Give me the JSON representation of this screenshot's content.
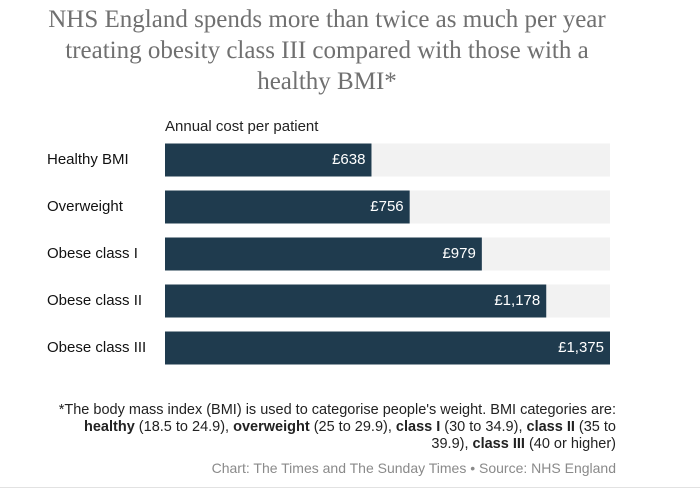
{
  "chart_data": {
    "type": "hbar",
    "title": "NHS England spends more than twice as much per year treating obesity class III compared with those with a healthy BMI*",
    "subtitle": "Annual cost per patient",
    "categories": [
      "Healthy BMI",
      "Overweight",
      "Obese class I",
      "Obese class II",
      "Obese class III"
    ],
    "values": [
      638,
      756,
      979,
      1178,
      1375
    ],
    "value_labels": [
      "£638",
      "£756",
      "£979",
      "£1,178",
      "£1,375"
    ],
    "color": "#1f3b4e",
    "track_color": "#f2f2f2",
    "xlim": [
      0,
      1375
    ],
    "footnote": [
      {
        "text": "*The body mass index (BMI) is used to categorise people's weight. BMI categories are: "
      },
      {
        "text": "healthy",
        "bold": true
      },
      {
        "text": " (18.5 to 24.9), "
      },
      {
        "text": "overweight",
        "bold": true
      },
      {
        "text": " (25 to 29.9), "
      },
      {
        "text": "class I",
        "bold": true
      },
      {
        "text": " (30 to 34.9), "
      },
      {
        "text": "class II",
        "bold": true
      },
      {
        "text": " (35 to 39.9), "
      },
      {
        "text": "class III",
        "bold": true
      },
      {
        "text": " (40 or higher)"
      }
    ],
    "source": "Chart: The Times and The Sunday Times • Source: NHS England"
  }
}
